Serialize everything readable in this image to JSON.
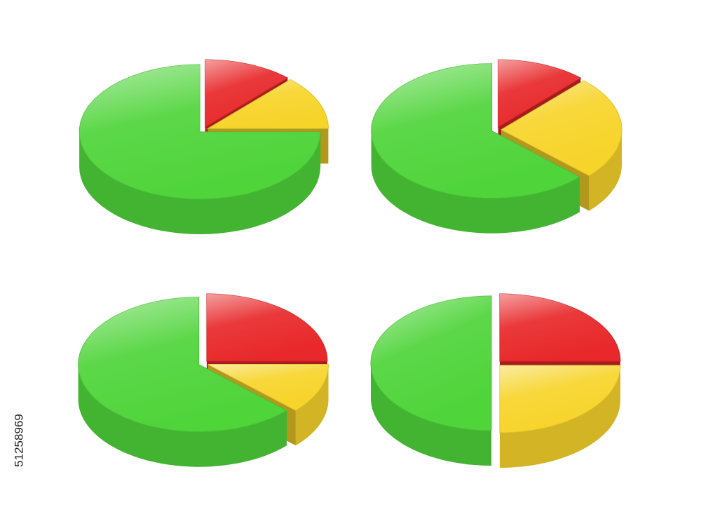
{
  "image_id": "51258969",
  "chart_data": [
    {
      "type": "pie",
      "values": [
        12,
        13,
        75
      ],
      "colors": [
        "#e8282a",
        "#f7d42a",
        "#4fd43a"
      ]
    },
    {
      "type": "pie",
      "values": [
        12,
        25,
        63
      ],
      "colors": [
        "#e8282a",
        "#f7d42a",
        "#4fd43a"
      ]
    },
    {
      "type": "pie",
      "values": [
        25,
        12,
        63
      ],
      "colors": [
        "#e8282a",
        "#f7d42a",
        "#4fd43a"
      ]
    },
    {
      "type": "pie",
      "values": [
        25,
        25,
        50
      ],
      "colors": [
        "#e8282a",
        "#f7d42a",
        "#4fd43a"
      ]
    }
  ]
}
